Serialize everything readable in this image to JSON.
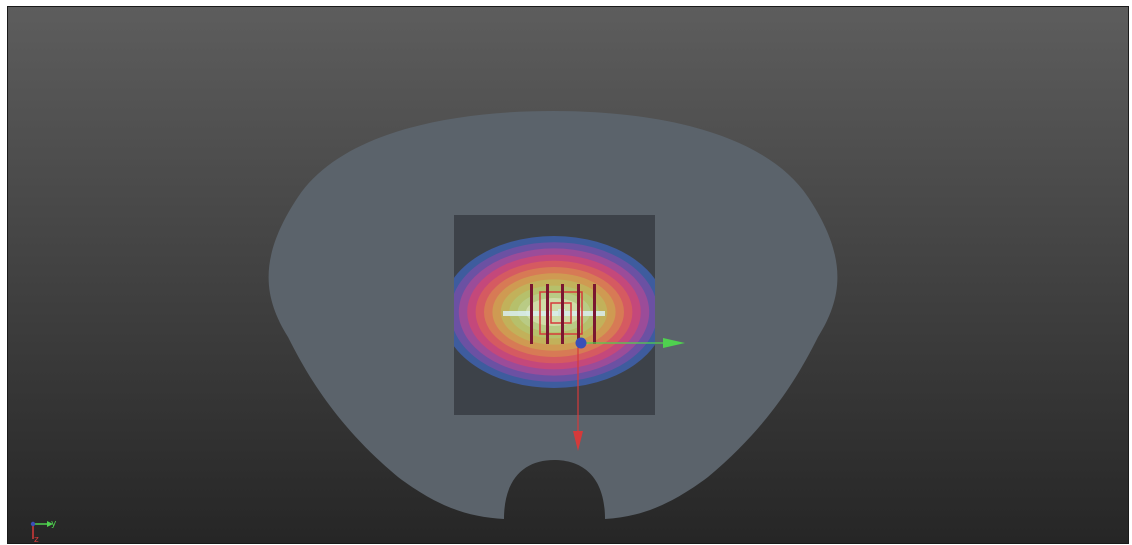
{
  "viewport": {
    "name": "3d-viewport",
    "background_top": "#5d5d5d",
    "background_bottom": "#262626"
  },
  "scene": {
    "body_contour_color": "#5b636b",
    "cube_color": "#3d4249",
    "dose_colors": [
      "#3e5c9e",
      "#6b51a3",
      "#9b4c99",
      "#c4487b",
      "#d55a61",
      "#d77a55",
      "#cf9a52",
      "#c2b15a",
      "#b6c06b",
      "#b9cb85",
      "#d0dca8"
    ],
    "rod_color": "#7a1630",
    "gizmo": {
      "x_axis_color": "#d53a3a",
      "y_axis_color": "#4fd14f",
      "center_color": "#3a4fb8"
    }
  },
  "orientation": {
    "y_label": "y",
    "z_label": "z",
    "y_color": "#4fd14f",
    "z_color": "#d53a3a"
  }
}
